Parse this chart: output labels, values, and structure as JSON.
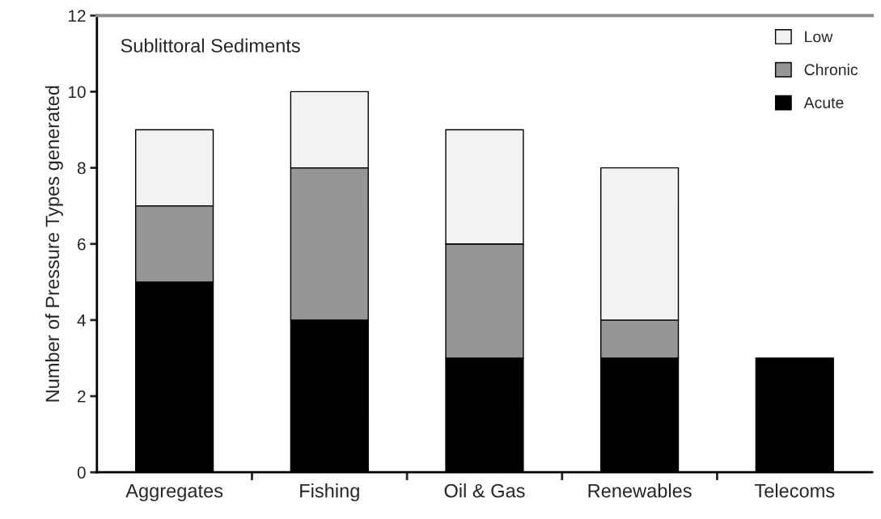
{
  "chart_data": {
    "type": "bar",
    "title": "Sublittoral Sediments",
    "ylabel": "Number of Pressure Types generated",
    "categories": [
      "Aggregates",
      "Fishing",
      "Oil & Gas",
      "Renewables",
      "Telecoms"
    ],
    "stacked": true,
    "series": [
      {
        "name": "Acute",
        "color": "#000000",
        "values": [
          5,
          4,
          3,
          3,
          3
        ]
      },
      {
        "name": "Chronic",
        "color": "#969696",
        "values": [
          2,
          4,
          3,
          1,
          null
        ]
      },
      {
        "name": "Low",
        "color": "#f2f2f2",
        "values": [
          2,
          2,
          3,
          4,
          null
        ]
      }
    ],
    "ylim": [
      0,
      12
    ],
    "yticks": [
      0,
      2,
      4,
      6,
      8,
      10,
      12
    ],
    "grid": false,
    "legend": "top right"
  }
}
